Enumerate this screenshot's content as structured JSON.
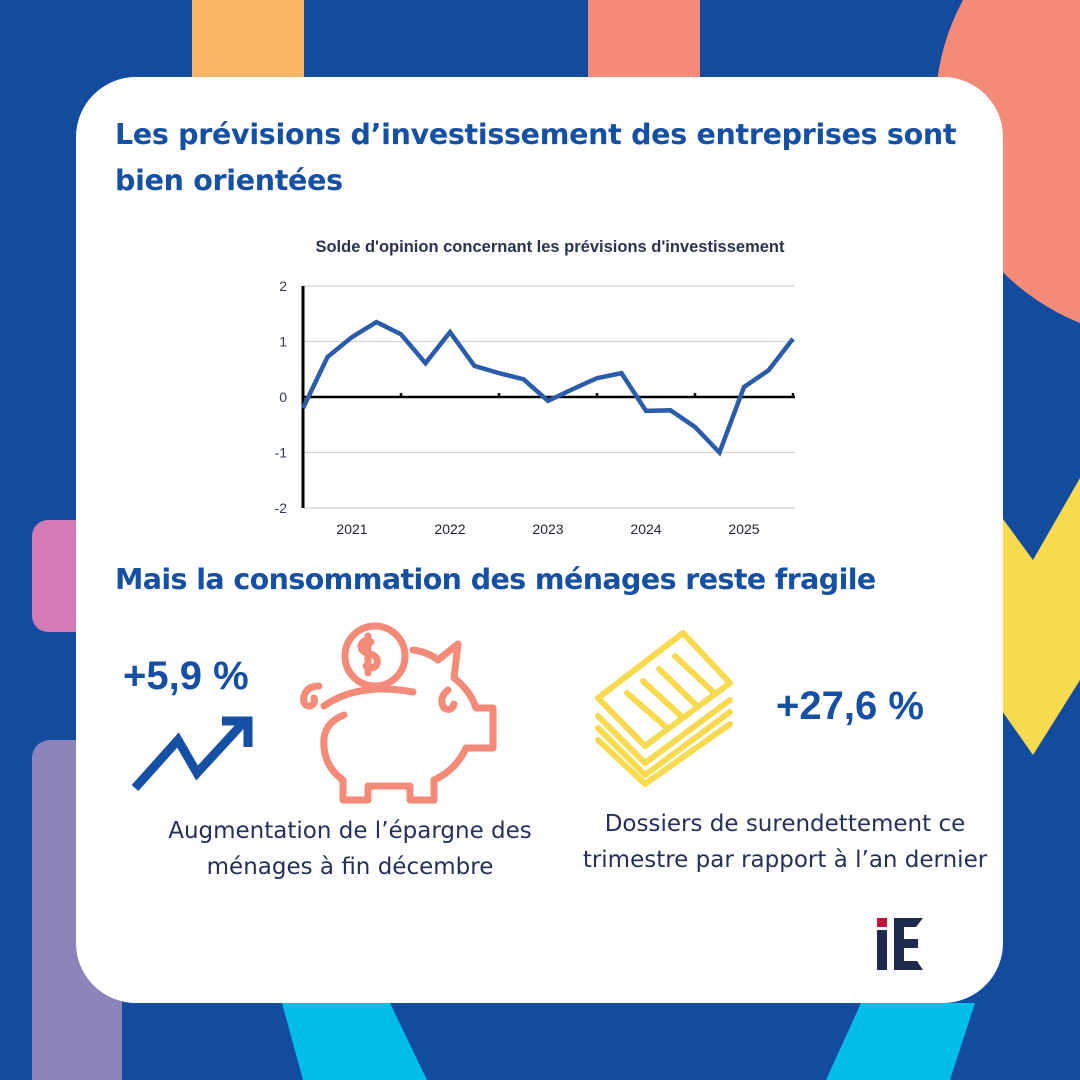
{
  "colors": {
    "background": "#134B9E",
    "card": "#FFFFFF",
    "heading": "#1550A4",
    "body_text": "#23305A",
    "chart_line": "#2A5CAA",
    "orange": "#F9B563",
    "salmon": "#F48A78",
    "pink": "#D27BB6",
    "purple": "#8C84BB",
    "yellow": "#F8DA4F",
    "cyan": "#00BEE8",
    "logo_navy": "#1E2B4E",
    "logo_red": "#C0143C"
  },
  "header": {
    "title": "Les prévisions d’investissement des entreprises sont bien orientées"
  },
  "section2": {
    "title": "Mais la consommation des ménages reste fragile"
  },
  "stats": [
    {
      "value": "+5,9 %",
      "description": "Augmentation de l’épargne des ménages à fin décembre",
      "icons": [
        "trend-up-arrow-icon",
        "piggy-bank-icon"
      ]
    },
    {
      "value": "+27,6 %",
      "description": "Dossiers de surendettement ce trimestre par rapport à l’an dernier",
      "icons": [
        "document-stack-icon"
      ]
    }
  ],
  "logo": {
    "text": "iE"
  },
  "chart_data": {
    "type": "line",
    "title": "Solde d'opinion concernant les prévisions d'investissement",
    "xlabel": "",
    "ylabel": "",
    "ylim": [
      -2,
      2
    ],
    "yticks": [
      2,
      1,
      0,
      -1,
      -2
    ],
    "xtick_labels": [
      "2021",
      "2022",
      "2023",
      "2024",
      "2025"
    ],
    "grid": true,
    "legend": "none",
    "x": [
      "2021 T1",
      "2021 T2",
      "2021 T3",
      "2021 T4",
      "2022 T1",
      "2022 T2",
      "2022 T3",
      "2022 T4",
      "2023 T1",
      "2023 T2",
      "2023 T3",
      "2023 T4",
      "2024 T1",
      "2024 T2",
      "2024 T3",
      "2024 T4",
      "2025 T1",
      "2025 T2",
      "2025 T3",
      "2025 T4",
      "2026 T1"
    ],
    "series": [
      {
        "name": "Solde d'opinion",
        "values": [
          -0.2,
          0.72,
          1.08,
          1.35,
          1.13,
          0.61,
          1.17,
          0.56,
          0.43,
          0.32,
          -0.07,
          0.14,
          0.34,
          0.43,
          -0.25,
          -0.24,
          -0.54,
          -1.0,
          0.18,
          0.48,
          1.05
        ]
      }
    ]
  }
}
